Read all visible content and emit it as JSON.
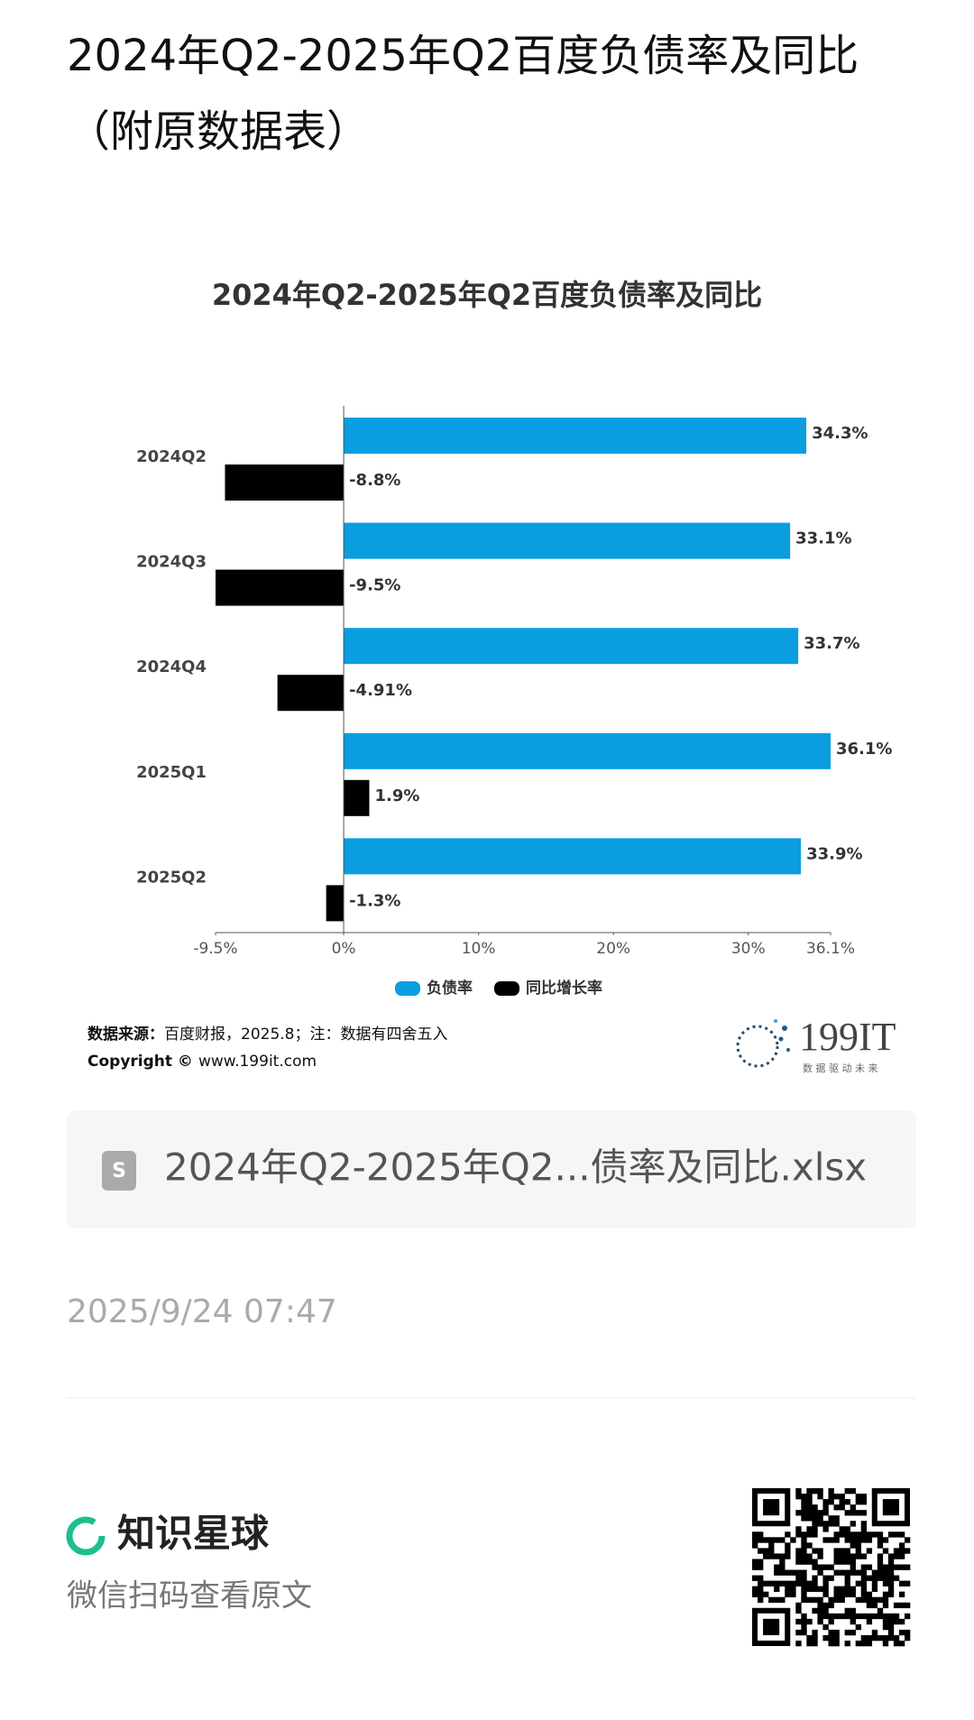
{
  "header": {
    "title": "2024年Q2-2025年Q2百度负债率及同比（附原数据表）"
  },
  "chart_data": {
    "type": "bar",
    "orientation": "horizontal",
    "title": "2024年Q2-2025年Q2百度负债率及同比",
    "categories": [
      "2024Q2",
      "2024Q3",
      "2024Q4",
      "2025Q1",
      "2025Q2"
    ],
    "series": [
      {
        "name": "负债率",
        "color": "#0a9de0",
        "values": [
          34.3,
          33.1,
          33.7,
          36.1,
          33.9
        ],
        "value_labels": [
          "34.3%",
          "33.1%",
          "33.7%",
          "36.1%",
          "33.9%"
        ]
      },
      {
        "name": "同比增长率",
        "color": "#000000",
        "values": [
          -8.8,
          -9.5,
          -4.91,
          1.9,
          -1.3
        ],
        "value_labels": [
          "-8.8%",
          "-9.5%",
          "-4.91%",
          "1.9%",
          "-1.3%"
        ]
      }
    ],
    "xlim": [
      -9.5,
      36.1
    ],
    "xticks": [
      {
        "value": -9.5,
        "label": "-9.5%"
      },
      {
        "value": 0,
        "label": "0%"
      },
      {
        "value": 10,
        "label": "10%"
      },
      {
        "value": 20,
        "label": "20%"
      },
      {
        "value": 30,
        "label": "30%"
      },
      {
        "value": 36.1,
        "label": "36.1%"
      }
    ],
    "legend": "bottom"
  },
  "source": {
    "label": "数据来源：",
    "text": "百度财报，2025.8；注：数据有四舍五入",
    "copyright_label": "Copyright ©",
    "copyright_text": "www.199it.com"
  },
  "logo": {
    "name": "199IT",
    "slogan": "数 据 驱 动 未 来"
  },
  "file": {
    "name": "2024年Q2-2025年Q2...债率及同比.xlsx"
  },
  "date": "2025/9/24 07:47",
  "footer": {
    "brand": "知识星球",
    "hint": "微信扫码查看原文"
  }
}
